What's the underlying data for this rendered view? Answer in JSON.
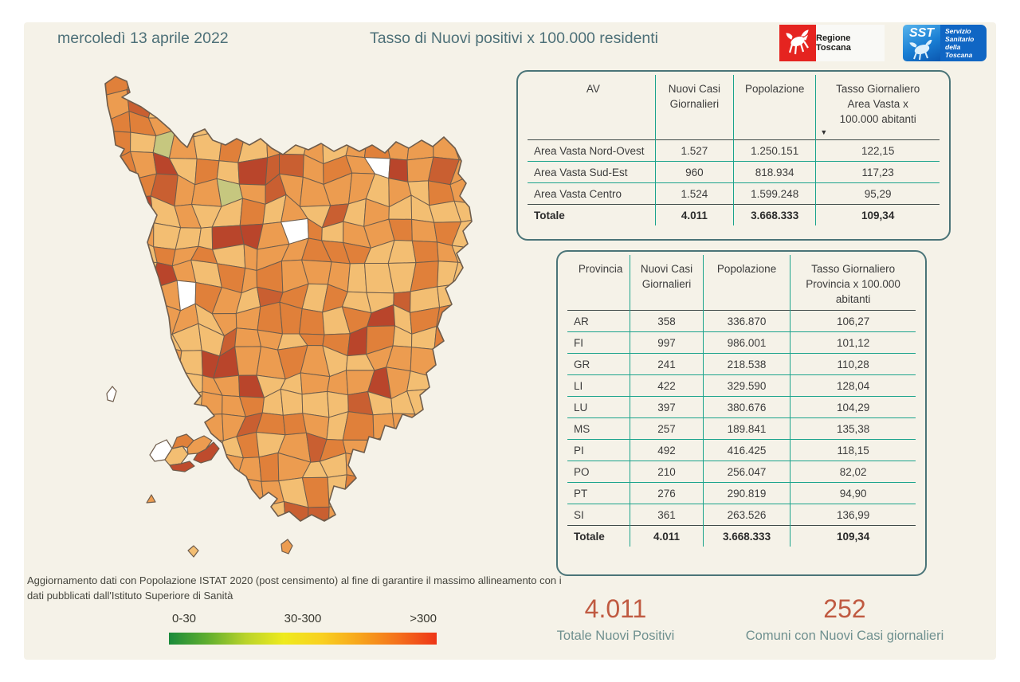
{
  "header": {
    "date": "mercoledì 13 aprile 2022",
    "title": "Tasso di Nuovi positivi x 100.000 residenti",
    "logos": {
      "regione": {
        "label": "Regione Toscana"
      },
      "sst": {
        "acronym": "SST",
        "label_lines": [
          "Servizio",
          "Sanitario",
          "della",
          "Toscana"
        ]
      }
    }
  },
  "icons": {
    "sort_desc": "▼"
  },
  "chart_data": [
    {
      "type": "table",
      "name": "area_vasta",
      "columns": [
        {
          "label": "AV"
        },
        {
          "label": "Nuovi Casi\nGiornalieri"
        },
        {
          "label": "Popolazione"
        },
        {
          "label": "Tasso Giornaliero\nArea Vasta x\n100.000 abitanti",
          "sort": "desc"
        }
      ],
      "rows": [
        [
          "Area Vasta Nord-Ovest",
          "1.527",
          "1.250.151",
          "122,15"
        ],
        [
          "Area Vasta Sud-Est",
          "960",
          "818.934",
          "117,23"
        ],
        [
          "Area Vasta Centro",
          "1.524",
          "1.599.248",
          "95,29"
        ]
      ],
      "total": [
        "Totale",
        "4.011",
        "3.668.333",
        "109,34"
      ]
    },
    {
      "type": "table",
      "name": "provincia",
      "columns": [
        {
          "label": "Provincia"
        },
        {
          "label": "Nuovi Casi\nGiornalieri"
        },
        {
          "label": "Popolazione"
        },
        {
          "label": "Tasso Giornaliero\nProvincia x 100.000\nabitanti"
        }
      ],
      "rows": [
        [
          "AR",
          "358",
          "336.870",
          "106,27"
        ],
        [
          "FI",
          "997",
          "986.001",
          "101,12"
        ],
        [
          "GR",
          "241",
          "218.538",
          "110,28"
        ],
        [
          "LI",
          "422",
          "329.590",
          "128,04"
        ],
        [
          "LU",
          "397",
          "380.676",
          "104,29"
        ],
        [
          "MS",
          "257",
          "189.841",
          "135,38"
        ],
        [
          "PI",
          "492",
          "416.425",
          "118,15"
        ],
        [
          "PO",
          "210",
          "256.047",
          "82,02"
        ],
        [
          "PT",
          "276",
          "290.819",
          "94,90"
        ],
        [
          "SI",
          "361",
          "263.526",
          "136,99"
        ]
      ],
      "total": [
        "Totale",
        "4.011",
        "3.668.333",
        "109,34"
      ]
    },
    {
      "type": "choropleth",
      "name": "tuscany_municipalities_map",
      "region": "Toscana",
      "metric": "Tasso di Nuovi positivi x 100.000 residenti",
      "legend_bins": [
        "0-30",
        "30-300",
        ">300"
      ]
    },
    {
      "type": "kpi",
      "value": "4.011",
      "label": "Totale Nuovi Positivi"
    },
    {
      "type": "kpi",
      "value": "252",
      "label": "Comuni con Nuovi Casi giornalieri"
    }
  ],
  "footnote": "Aggiornamento dati con Popolazione ISTAT 2020 (post censimento) al fine di garantire il massimo allineamento con i dati pubblicati dall'Istituto Superiore di Sanità",
  "legend": {
    "labels": [
      "0-30",
      "30-300",
      ">300"
    ],
    "gradient": [
      "#1a8a3b",
      "#5fae2f",
      "#b9d32b",
      "#eeea1e",
      "#f9d020",
      "#f7a41c",
      "#f4701c",
      "#ee3517"
    ]
  },
  "map": {
    "region": "Toscana",
    "border_color": "#6f5d4c",
    "base_color": "#EC9C50",
    "palette": [
      {
        "color": "#F3BE72",
        "weight": 0.3
      },
      {
        "color": "#EC9C50",
        "weight": 0.32
      },
      {
        "color": "#E0803A",
        "weight": 0.2
      },
      {
        "color": "#C95F31",
        "weight": 0.07
      },
      {
        "color": "#B9452B",
        "weight": 0.04
      },
      {
        "color": "#FFFFFF",
        "weight": 0.045
      },
      {
        "color": "#C6C77F",
        "weight": 0.025
      }
    ],
    "islands": [
      {
        "name": "capraia",
        "color": "#FFFFFF"
      },
      {
        "name": "elba-west",
        "color": "#FFFFFF"
      },
      {
        "name": "elba-mid",
        "color": "#F3BE72"
      },
      {
        "name": "elba-north",
        "color": "#E0803A"
      },
      {
        "name": "elba-east",
        "color": "#EC9C50"
      },
      {
        "name": "elba-east-red",
        "color": "#BE4B2D"
      },
      {
        "name": "elba-south-red",
        "color": "#BE4B2D"
      },
      {
        "name": "islet-1",
        "color": "#EC9C50"
      },
      {
        "name": "islet-2",
        "color": "#F3BE72"
      },
      {
        "name": "giglio",
        "color": "#EC9C50"
      }
    ]
  },
  "colors": {
    "canvas_bg": "#f5f2e8",
    "text_teal": "#4d7078",
    "table_border": "#4a7478",
    "grid_line": "#1aa38c",
    "dark_line": "#3f4a48",
    "text_dark": "#3c3c3c",
    "kpi_value": "#c05a41",
    "kpi_label": "#6f908f",
    "regione_red": "#e52420",
    "sst_blue": "#1066c4"
  }
}
